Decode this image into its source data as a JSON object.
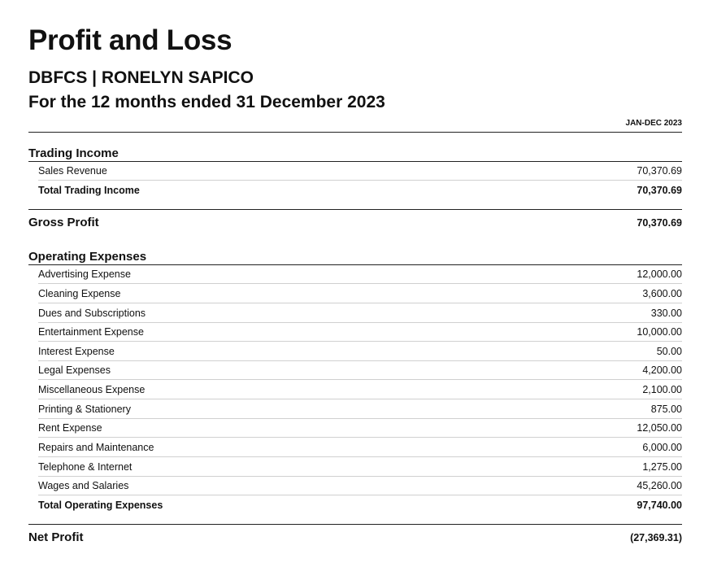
{
  "report": {
    "title": "Profit and Loss",
    "organization": "DBFCS | RONELYN SAPICO",
    "period": "For the 12 months ended 31 December 2023",
    "column_header": "JAN-DEC 2023"
  },
  "trading_income": {
    "title": "Trading Income",
    "rows": [
      {
        "label": "Sales Revenue",
        "amount": "70,370.69"
      }
    ],
    "total": {
      "label": "Total Trading Income",
      "amount": "70,370.69"
    }
  },
  "gross_profit": {
    "label": "Gross Profit",
    "amount": "70,370.69"
  },
  "operating_expenses": {
    "title": "Operating Expenses",
    "rows": [
      {
        "label": "Advertising Expense",
        "amount": "12,000.00"
      },
      {
        "label": "Cleaning Expense",
        "amount": "3,600.00"
      },
      {
        "label": "Dues and Subscriptions",
        "amount": "330.00"
      },
      {
        "label": "Entertainment Expense",
        "amount": "10,000.00"
      },
      {
        "label": "Interest Expense",
        "amount": "50.00"
      },
      {
        "label": "Legal Expenses",
        "amount": "4,200.00"
      },
      {
        "label": "Miscellaneous Expense",
        "amount": "2,100.00"
      },
      {
        "label": "Printing & Stationery",
        "amount": "875.00"
      },
      {
        "label": "Rent Expense",
        "amount": "12,050.00"
      },
      {
        "label": "Repairs and Maintenance",
        "amount": "6,000.00"
      },
      {
        "label": "Telephone & Internet",
        "amount": "1,275.00"
      },
      {
        "label": "Wages and Salaries",
        "amount": "45,260.00"
      }
    ],
    "total": {
      "label": "Total Operating Expenses",
      "amount": "97,740.00"
    }
  },
  "net_profit": {
    "label": "Net Profit",
    "amount": "(27,369.31)"
  }
}
